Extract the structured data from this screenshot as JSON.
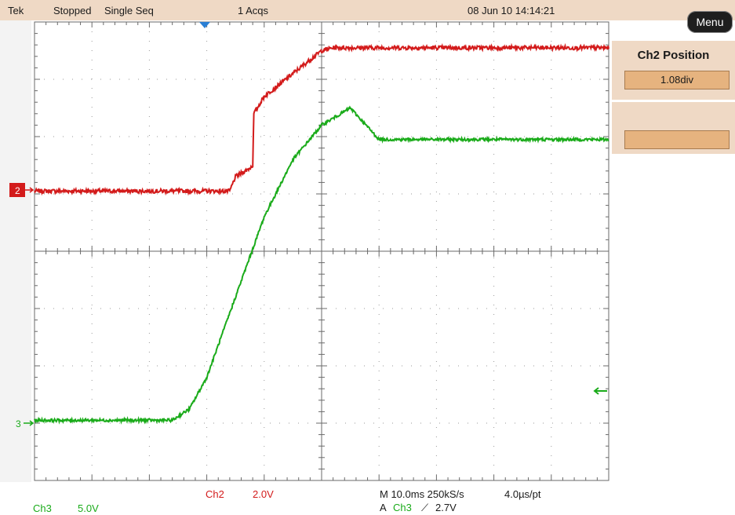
{
  "status_bar": {
    "brand": "Tek",
    "run_state": "Stopped",
    "acq_mode": "Single Seq",
    "acquisitions": "1 Acqs",
    "datetime": "08 Jun 10 14:14:21"
  },
  "menu_button_label": "Menu",
  "side_menu": {
    "title": "Ch2 Position",
    "value": "1.08div",
    "second_value": ""
  },
  "markers": {
    "ch2": "2",
    "ch3": "3"
  },
  "readouts": {
    "ch3_label": "Ch3",
    "ch3_scale": "5.0V",
    "ch2_label": "Ch2",
    "ch2_scale": "2.0V",
    "timebase": "M 10.0ms 250kS/s",
    "record": "4.0µs/pt",
    "trigger_prefix": "A",
    "trigger_source": "Ch3",
    "trigger_slope_symbol": "⟋",
    "trigger_level": "2.7V"
  },
  "colors": {
    "ch2": "#d31b1b",
    "ch3": "#1aab1a",
    "panel": "#efd9c5",
    "field": "#e6b37f"
  },
  "chart_data": {
    "type": "line",
    "grid": true,
    "xlim": [
      0,
      10
    ],
    "ylim": [
      -4,
      4
    ],
    "series": [
      {
        "name": "Ch2",
        "x": [
          0,
          3.4,
          3.5,
          3.75,
          3.8,
          3.82,
          4.0,
          4.5,
          5.0,
          5.2,
          10
        ],
        "y": [
          1.05,
          1.05,
          1.3,
          1.45,
          1.5,
          2.4,
          2.7,
          3.1,
          3.5,
          3.55,
          3.55
        ]
      },
      {
        "name": "Ch3",
        "x": [
          0,
          2.4,
          2.7,
          3.0,
          3.5,
          4.0,
          4.5,
          5.0,
          5.5,
          6.0,
          10
        ],
        "y": [
          -2.95,
          -2.95,
          -2.75,
          -2.2,
          -0.8,
          0.6,
          1.6,
          2.2,
          2.5,
          1.95,
          1.95
        ]
      }
    ]
  }
}
